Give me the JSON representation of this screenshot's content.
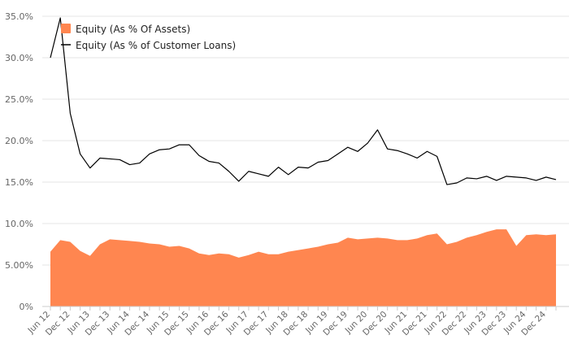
{
  "chart_data": {
    "type": "area+line",
    "title": "",
    "xlabel": "",
    "ylabel": "",
    "ylim": [
      0,
      35
    ],
    "y_ticks": [
      "0%",
      "5.00%",
      "10.0%",
      "15.0%",
      "20.0%",
      "25.0%",
      "30.0%",
      "35.0%"
    ],
    "y_tick_values": [
      0,
      5,
      10,
      15,
      20,
      25,
      30,
      35
    ],
    "grid": true,
    "legend_position": "top-left",
    "x": [
      "Jun 12",
      "Sep 12",
      "Dec 12",
      "Mar 13",
      "Jun 13",
      "Sep 13",
      "Dec 13",
      "Mar 14",
      "Jun 14",
      "Sep 14",
      "Dec 14",
      "Mar 15",
      "Jun 15",
      "Sep 15",
      "Dec 15",
      "Mar 16",
      "Jun 16",
      "Sep 16",
      "Dec 16",
      "Mar 17",
      "Jun 17",
      "Sep 17",
      "Dec 17",
      "Mar 18",
      "Jun 18",
      "Sep 18",
      "Dec 18",
      "Mar 19",
      "Jun 19",
      "Sep 19",
      "Dec 19",
      "Mar 20",
      "Jun 20",
      "Sep 20",
      "Dec 20",
      "Mar 21",
      "Jun 21",
      "Sep 21",
      "Dec 21",
      "Mar 22",
      "Jun 22",
      "Sep 22",
      "Dec 22",
      "Mar 23",
      "Jun 23",
      "Sep 23",
      "Dec 23",
      "Mar 24",
      "Jun 24",
      "Sep 24",
      "Dec 24",
      "Mar 25"
    ],
    "x_tick_labels": [
      "Jun 12",
      "Dec 12",
      "Jun 13",
      "Dec 13",
      "Jun 14",
      "Dec 14",
      "Jun 15",
      "Dec 15",
      "Jun 16",
      "Dec 16",
      "Jun 17",
      "Dec 17",
      "Jun 18",
      "Dec 18",
      "Jun 19",
      "Dec 19",
      "Jun 20",
      "Dec 20",
      "Jun 21",
      "Dec 21",
      "Jun 22",
      "Dec 22",
      "Jun 23",
      "Dec 23",
      "Jun 24",
      "Dec 24"
    ],
    "series": [
      {
        "name": "Equity (As % Of Assets)",
        "type": "area",
        "color": "#ff8650",
        "values": [
          6.6,
          8.0,
          7.8,
          6.7,
          6.1,
          7.5,
          8.1,
          8.0,
          7.9,
          7.8,
          7.6,
          7.5,
          7.2,
          7.3,
          7.0,
          6.4,
          6.2,
          6.4,
          6.3,
          5.9,
          6.2,
          6.6,
          6.3,
          6.3,
          6.6,
          6.8,
          7.0,
          7.2,
          7.5,
          7.7,
          8.3,
          8.1,
          8.2,
          8.3,
          8.2,
          8.0,
          8.0,
          8.2,
          8.6,
          8.8,
          7.5,
          7.8,
          8.3,
          8.6,
          9.0,
          9.3,
          9.3,
          7.3,
          8.6,
          8.7,
          8.6,
          8.7
        ]
      },
      {
        "name": "Equity (As % of Customer Loans)",
        "type": "line",
        "color": "#000000",
        "values": [
          30.0,
          34.8,
          23.3,
          18.4,
          16.7,
          17.9,
          17.8,
          17.7,
          17.1,
          17.3,
          18.4,
          18.9,
          19.0,
          19.5,
          19.5,
          18.2,
          17.5,
          17.3,
          16.3,
          15.1,
          16.3,
          16.0,
          15.7,
          16.8,
          15.9,
          16.8,
          16.7,
          17.4,
          17.6,
          18.4,
          19.2,
          18.7,
          19.7,
          21.3,
          19.0,
          18.8,
          18.4,
          17.9,
          18.7,
          18.1,
          14.7,
          14.9,
          15.5,
          15.4,
          15.7,
          15.2,
          15.7,
          15.6,
          15.5,
          15.2,
          15.6,
          15.3
        ]
      }
    ]
  }
}
